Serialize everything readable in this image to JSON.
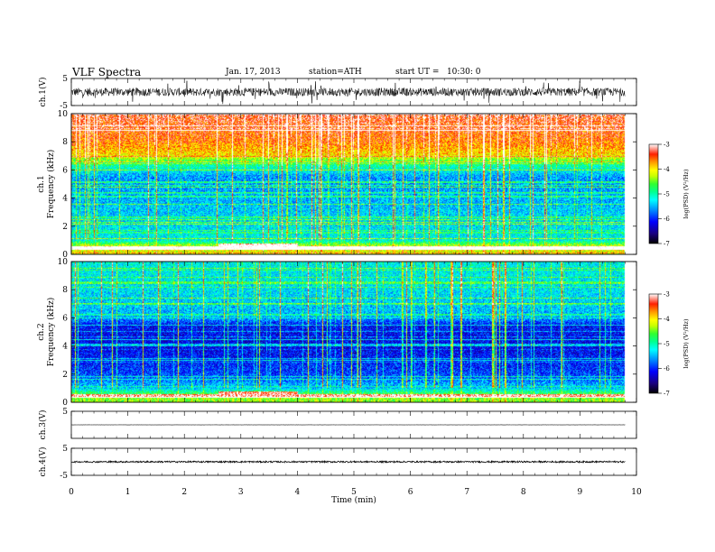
{
  "header": {
    "title": "VLF Spectra",
    "date": "Jan. 17, 2013",
    "station": "station=ATH",
    "start": "start UT =   10:30: 0"
  },
  "colors": {
    "colormap": [
      "#000000",
      "#1a0080",
      "#0000ff",
      "#0050ff",
      "#00c8ff",
      "#00ffc0",
      "#30ff30",
      "#c8ff00",
      "#ffff00",
      "#ff9900",
      "#ff3300",
      "#ffffff"
    ]
  },
  "chart_data": [
    {
      "id": "ch1-waveform",
      "type": "line",
      "ylabel": "ch.1(V)",
      "xlim": [
        0,
        10
      ],
      "ylim": [
        -5,
        5
      ],
      "yticks": [
        5,
        -5
      ],
      "data_extent_min": 9.8,
      "baseline": 0,
      "noise_amplitude": 1.5,
      "spike_amplitude": 4.5
    },
    {
      "id": "ch1-spectrogram",
      "type": "heatmap",
      "ylabel": "ch.1 Frequency (kHz)",
      "xlim": [
        0,
        10
      ],
      "ylim": [
        0,
        10
      ],
      "yticks": [
        10,
        8,
        6,
        4,
        2,
        0
      ],
      "data_extent_min": 9.8,
      "colorbar": {
        "label": "log(PSD) (V²/Hz)",
        "ticks": [
          -3,
          -4,
          -5,
          -6,
          -7
        ],
        "range": [
          -7,
          -3
        ]
      },
      "frequency_profile_khz_logpsd": [
        [
          0,
          -4.2
        ],
        [
          0.5,
          -4.0
        ],
        [
          1,
          -5.2
        ],
        [
          2,
          -5.3
        ],
        [
          4,
          -5.5
        ],
        [
          5.5,
          -5.6
        ],
        [
          6.5,
          -4.8
        ],
        [
          7,
          -4.0
        ],
        [
          8,
          -3.6
        ],
        [
          10,
          -3.3
        ]
      ]
    },
    {
      "id": "ch2-spectrogram",
      "type": "heatmap",
      "ylabel": "ch.2 Frequency (kHz)",
      "xlim": [
        0,
        10
      ],
      "ylim": [
        0,
        10
      ],
      "yticks": [
        10,
        8,
        6,
        4,
        2,
        0
      ],
      "data_extent_min": 9.8,
      "colorbar": {
        "label": "log(PSD) (V²/Hz)",
        "ticks": [
          -3,
          -4,
          -5,
          -6,
          -7
        ],
        "range": [
          -7,
          -3
        ]
      },
      "frequency_profile_khz_logpsd": [
        [
          0,
          -4.4
        ],
        [
          0.5,
          -4.5
        ],
        [
          1,
          -5.4
        ],
        [
          2,
          -5.9
        ],
        [
          4,
          -6.2
        ],
        [
          5.5,
          -6.1
        ],
        [
          6,
          -5.5
        ],
        [
          7,
          -5.4
        ],
        [
          8,
          -5.3
        ],
        [
          10,
          -5.2
        ]
      ]
    },
    {
      "id": "ch3-waveform",
      "type": "line",
      "ylabel": "ch.3(V)",
      "xlim": [
        0,
        10
      ],
      "ylim": [
        -5,
        5
      ],
      "yticks": [
        5
      ],
      "data_extent_min": 9.8,
      "baseline": 0,
      "noise_amplitude": 0.05
    },
    {
      "id": "ch4-waveform",
      "type": "line",
      "ylabel": "ch.4(V)",
      "xlim": [
        0,
        10
      ],
      "ylim": [
        -5,
        5
      ],
      "yticks": [
        5,
        -5
      ],
      "data_extent_min": 9.8,
      "baseline": 0,
      "noise_amplitude": 0.3
    }
  ],
  "xaxis": {
    "label": "Time (min)",
    "ticks": [
      "0",
      "1",
      "2",
      "3",
      "4",
      "5",
      "6",
      "7",
      "8",
      "9",
      "10"
    ]
  }
}
